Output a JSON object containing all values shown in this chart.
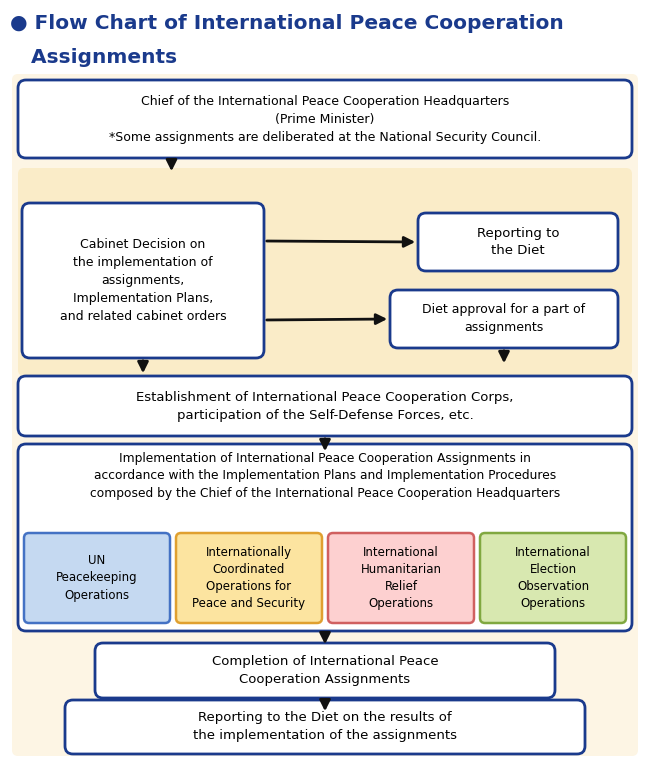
{
  "title_line1": "● Flow Chart of International Peace Cooperation",
  "title_line2": "   Assignments",
  "title_color": "#1a3a8c",
  "background_color": "#ffffff",
  "flow_bg_color": "#fdf5e4",
  "inner_bg_color": "#faecc8",
  "box_border_color": "#1a3a8c",
  "arrow_color": "#111111",
  "box1_text": "Chief of the International Peace Cooperation Headquarters\n(Prime Minister)\n*Some assignments are deliberated at the National Security Council.",
  "box2_text": "Cabinet Decision on\nthe implementation of\nassignments,\nImplementation Plans,\nand related cabinet orders",
  "box3_text": "Reporting to\nthe Diet",
  "box4_text": "Diet approval for a part of\nassignments",
  "box5_text": "Establishment of International Peace Cooperation Corps,\nparticipation of the Self-Defense Forces, etc.",
  "box6_text": "Implementation of International Peace Cooperation Assignments in\naccordance with the Implementation Plans and Implementation Procedures\ncomposed by the Chief of the International Peace Cooperation Headquarters",
  "box7a_text": "UN\nPeacekeeping\nOperations",
  "box7b_text": "Internationally\nCoordinated\nOperations for\nPeace and Security",
  "box7c_text": "International\nHumanitarian\nRelief\nOperations",
  "box7d_text": "International\nElection\nObservation\nOperations",
  "box8_text": "Completion of International Peace\nCooperation Assignments",
  "box9_text": "Reporting to the Diet on the results of\nthe implementation of the assignments",
  "box7a_fill": "#c5d9f1",
  "box7b_fill": "#fce4a0",
  "box7c_fill": "#fdd0d0",
  "box7d_fill": "#d8e8b0",
  "box7a_border": "#4472c4",
  "box7b_border": "#e0a030",
  "box7c_border": "#d06060",
  "box7d_border": "#80a840"
}
